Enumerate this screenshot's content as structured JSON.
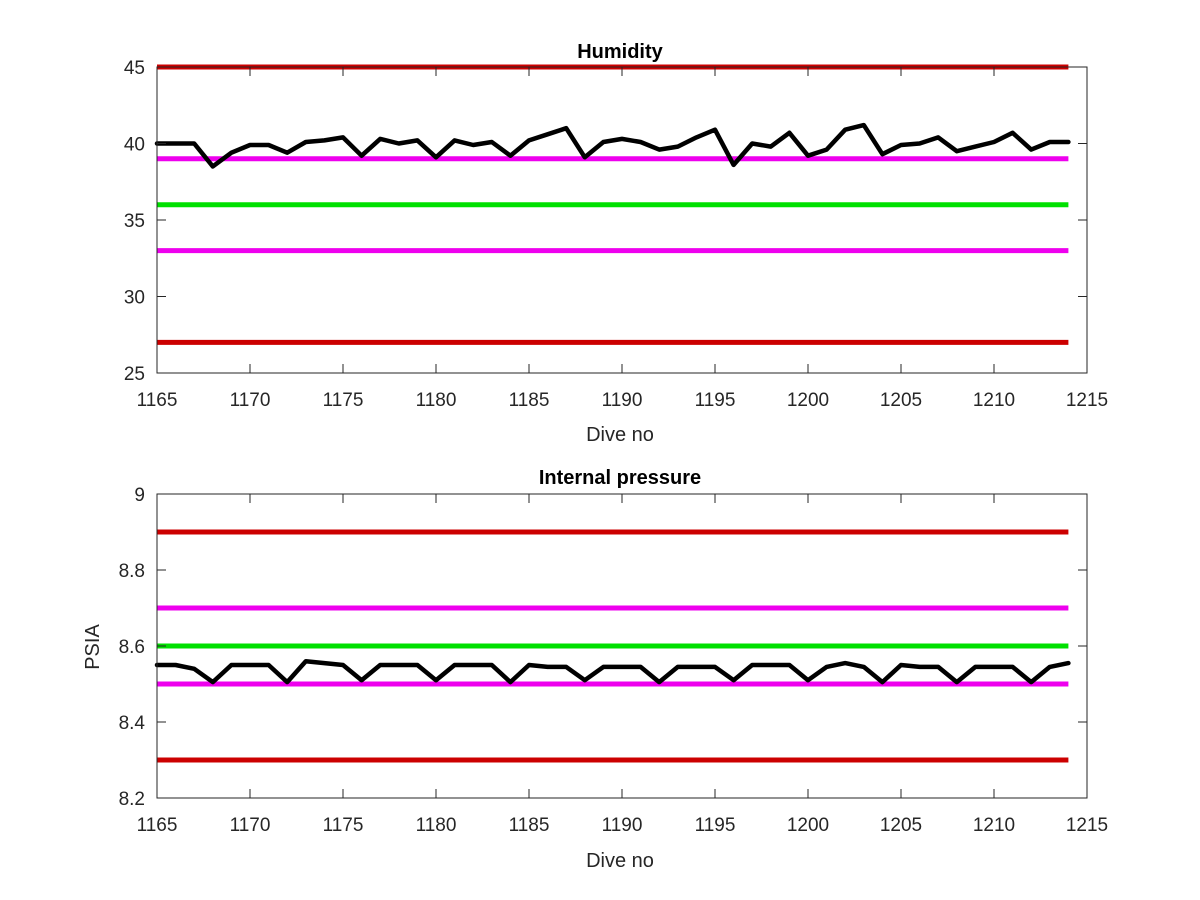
{
  "chart_data": [
    {
      "type": "line",
      "title": "Humidity",
      "xlabel": "Dive no",
      "ylabel": "",
      "xlim": [
        1165,
        1215
      ],
      "ylim": [
        25,
        45
      ],
      "xticks": [
        "1165",
        "1170",
        "1175",
        "1180",
        "1185",
        "1190",
        "1195",
        "1200",
        "1205",
        "1210",
        "1215"
      ],
      "yticks": [
        "25",
        "30",
        "35",
        "40",
        "45"
      ],
      "grid": false,
      "reference_lines": [
        {
          "y": 45,
          "color": "#cc0000"
        },
        {
          "y": 39,
          "color": "#ee00ee"
        },
        {
          "y": 36,
          "color": "#00e000"
        },
        {
          "y": 33,
          "color": "#ee00ee"
        },
        {
          "y": 27,
          "color": "#cc0000"
        }
      ],
      "series": [
        {
          "color": "#000000",
          "x": [
            1165,
            1166,
            1167,
            1168,
            1169,
            1170,
            1171,
            1172,
            1173,
            1174,
            1175,
            1176,
            1177,
            1178,
            1179,
            1180,
            1181,
            1182,
            1183,
            1184,
            1185,
            1186,
            1187,
            1188,
            1189,
            1190,
            1191,
            1192,
            1193,
            1194,
            1195,
            1196,
            1197,
            1198,
            1199,
            1200,
            1201,
            1202,
            1203,
            1204,
            1205,
            1206,
            1207,
            1208,
            1209,
            1210,
            1211,
            1212,
            1213,
            1214
          ],
          "values": [
            40.0,
            40.0,
            40.0,
            38.5,
            39.4,
            39.9,
            39.9,
            39.4,
            40.1,
            40.2,
            40.4,
            39.2,
            40.3,
            40.0,
            40.2,
            39.1,
            40.2,
            39.9,
            40.1,
            39.2,
            40.2,
            40.6,
            41.0,
            39.1,
            40.1,
            40.3,
            40.1,
            39.6,
            39.8,
            40.4,
            40.9,
            38.6,
            40.0,
            39.8,
            40.7,
            39.2,
            39.6,
            40.9,
            41.2,
            39.3,
            39.9,
            40.0,
            40.4,
            39.5,
            39.8,
            40.1,
            40.7,
            39.6,
            40.1,
            40.1
          ]
        }
      ]
    },
    {
      "type": "line",
      "title": "Internal pressure",
      "xlabel": "Dive no",
      "ylabel": "PSIA",
      "xlim": [
        1165,
        1215
      ],
      "ylim": [
        8.2,
        9
      ],
      "xticks": [
        "1165",
        "1170",
        "1175",
        "1180",
        "1185",
        "1190",
        "1195",
        "1200",
        "1205",
        "1210",
        "1215"
      ],
      "yticks": [
        "8.2",
        "8.4",
        "8.6",
        "8.8",
        "9"
      ],
      "grid": false,
      "reference_lines": [
        {
          "y": 8.9,
          "color": "#cc0000"
        },
        {
          "y": 8.7,
          "color": "#ee00ee"
        },
        {
          "y": 8.6,
          "color": "#00e000"
        },
        {
          "y": 8.5,
          "color": "#ee00ee"
        },
        {
          "y": 8.3,
          "color": "#cc0000"
        }
      ],
      "series": [
        {
          "color": "#000000",
          "x": [
            1165,
            1166,
            1167,
            1168,
            1169,
            1170,
            1171,
            1172,
            1173,
            1174,
            1175,
            1176,
            1177,
            1178,
            1179,
            1180,
            1181,
            1182,
            1183,
            1184,
            1185,
            1186,
            1187,
            1188,
            1189,
            1190,
            1191,
            1192,
            1193,
            1194,
            1195,
            1196,
            1197,
            1198,
            1199,
            1200,
            1201,
            1202,
            1203,
            1204,
            1205,
            1206,
            1207,
            1208,
            1209,
            1210,
            1211,
            1212,
            1213,
            1214
          ],
          "values": [
            8.55,
            8.55,
            8.54,
            8.505,
            8.55,
            8.55,
            8.55,
            8.505,
            8.56,
            8.555,
            8.55,
            8.51,
            8.55,
            8.55,
            8.55,
            8.51,
            8.55,
            8.55,
            8.55,
            8.505,
            8.55,
            8.545,
            8.545,
            8.51,
            8.545,
            8.545,
            8.545,
            8.505,
            8.545,
            8.545,
            8.545,
            8.51,
            8.55,
            8.55,
            8.55,
            8.51,
            8.545,
            8.555,
            8.545,
            8.505,
            8.55,
            8.545,
            8.545,
            8.505,
            8.545,
            8.545,
            8.545,
            8.505,
            8.545,
            8.555
          ]
        }
      ]
    }
  ]
}
